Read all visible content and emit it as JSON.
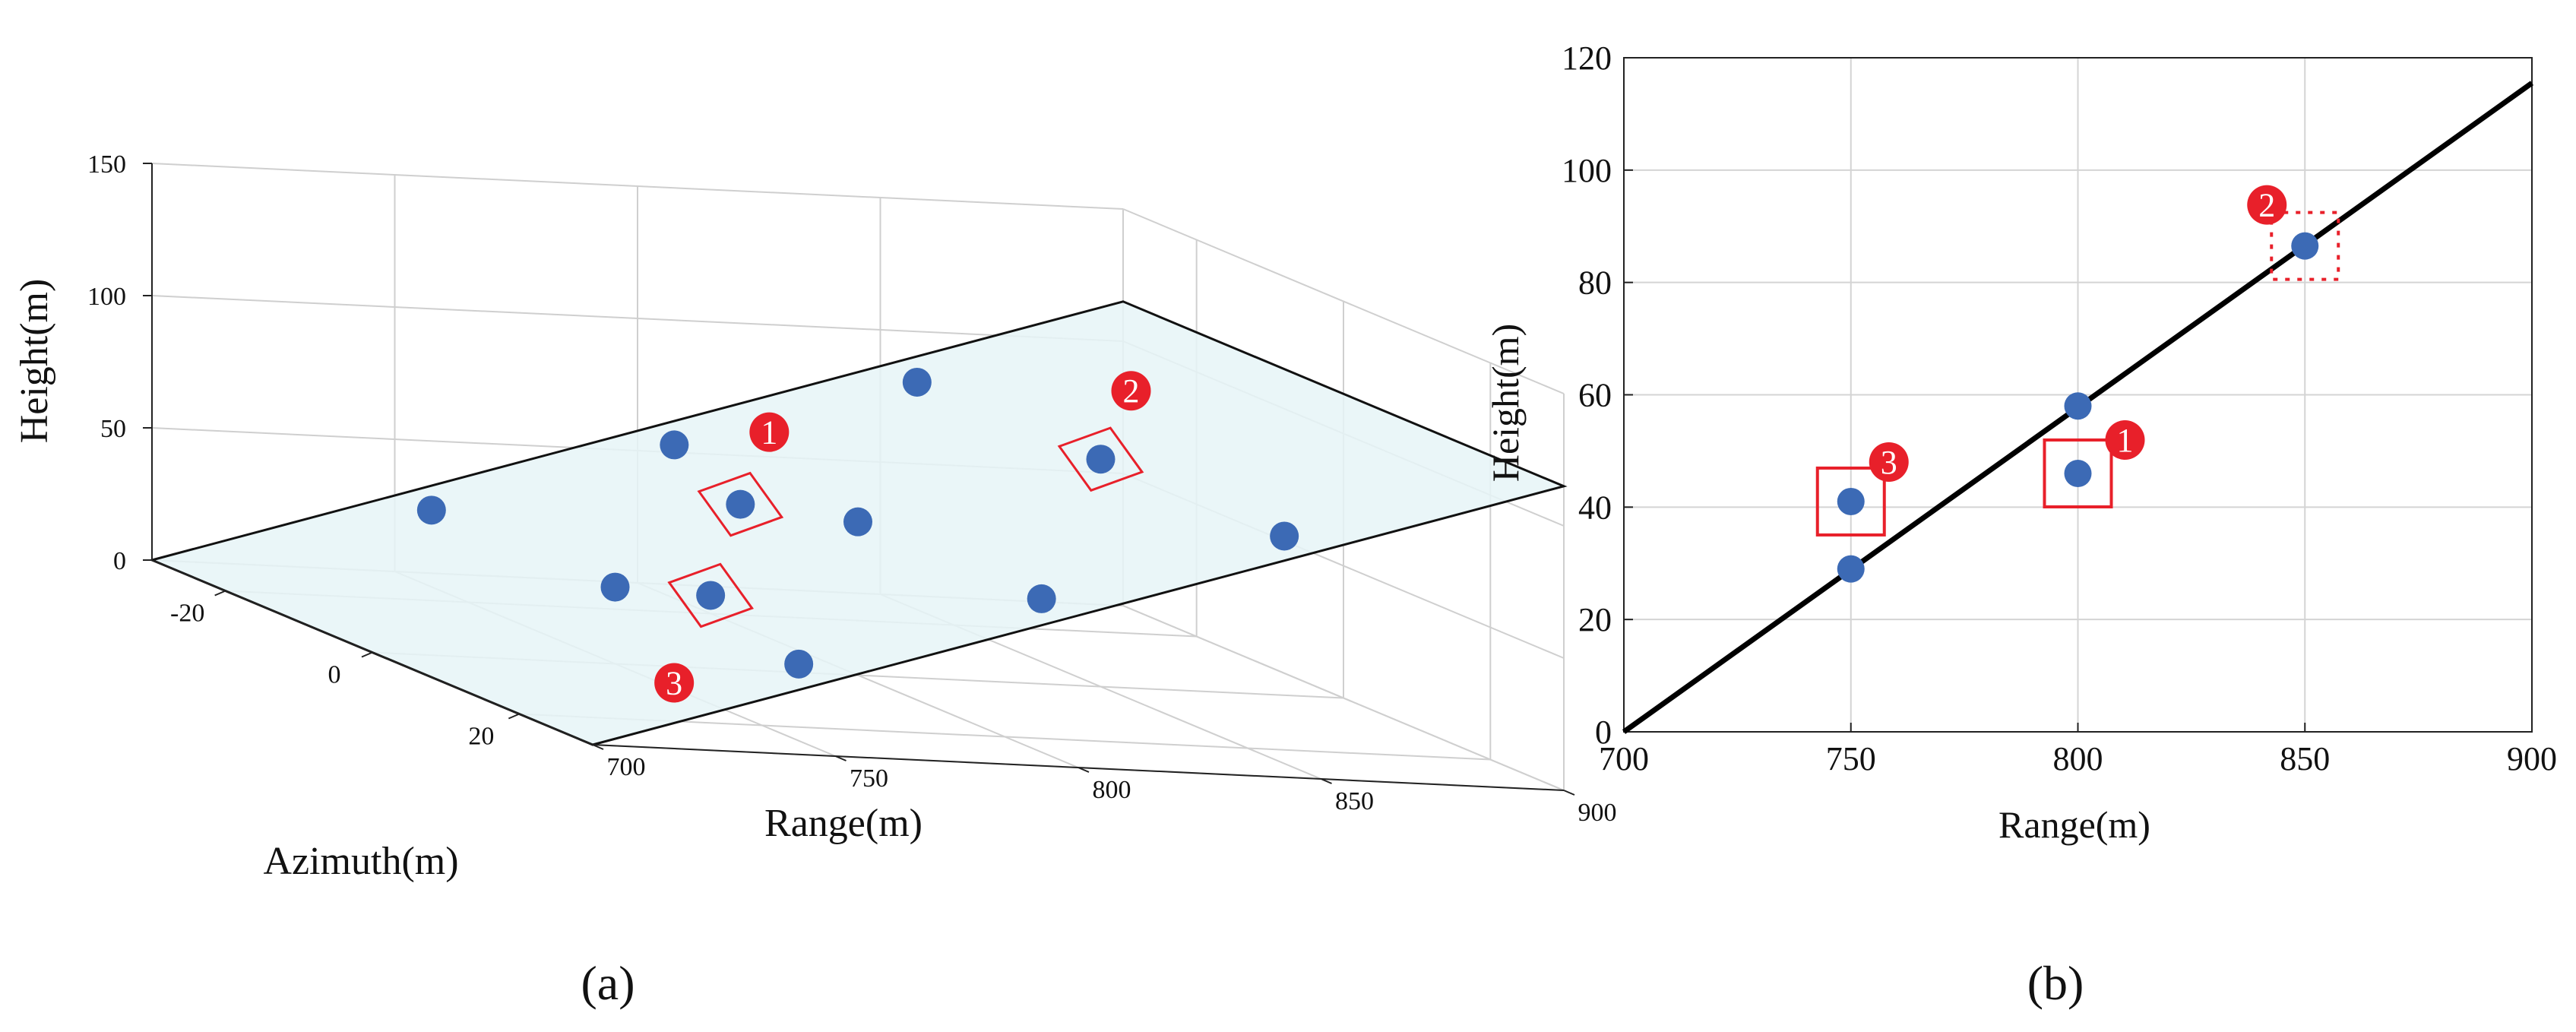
{
  "chart_data": [
    {
      "id": "a",
      "type": "scatter",
      "caption": "(a)",
      "xlabel": "Range(m)",
      "ylabel": "Azimuth(m)",
      "zlabel": "Height(m)",
      "xlim": [
        700,
        900
      ],
      "ylim": [
        -30,
        30
      ],
      "zlim": [
        0,
        150
      ],
      "x_ticks": [
        "700",
        "750",
        "800",
        "850",
        "900"
      ],
      "y_ticks": [
        "-20",
        "0",
        "20"
      ],
      "z_ticks": [
        "0",
        "50",
        "100",
        "150"
      ],
      "grid": true,
      "plane": {
        "z_at_700": 0,
        "z_at_900": 115,
        "color": "#e6f4f7"
      },
      "points": [
        {
          "x": 750,
          "y": 25,
          "z": 29
        },
        {
          "x": 750,
          "y": 0,
          "z": 29
        },
        {
          "x": 750,
          "y": -25,
          "z": 29
        },
        {
          "x": 800,
          "y": 25,
          "z": 58
        },
        {
          "x": 800,
          "y": 0,
          "z": 58
        },
        {
          "x": 800,
          "y": -25,
          "z": 58
        },
        {
          "x": 850,
          "y": 25,
          "z": 86
        },
        {
          "x": 850,
          "y": 0,
          "z": 86
        },
        {
          "x": 850,
          "y": -25,
          "z": 86
        },
        {
          "x": 800,
          "y": -16,
          "z": 46
        },
        {
          "x": 750,
          "y": 13,
          "z": 41
        }
      ],
      "markers": [
        {
          "label": "1",
          "x": 800,
          "y": -16,
          "z": 46,
          "style": "solid"
        },
        {
          "label": "2",
          "x": 850,
          "y": 0,
          "z": 86,
          "style": "solid"
        },
        {
          "label": "3",
          "x": 750,
          "y": 13,
          "z": 41,
          "style": "solid"
        }
      ],
      "point_color": "#3c6ab5",
      "marker_color": "#e8202a"
    },
    {
      "id": "b",
      "type": "scatter",
      "caption": "(b)",
      "xlabel": "Range(m)",
      "ylabel": "Height(m)",
      "xlim": [
        700,
        900
      ],
      "ylim": [
        0,
        120
      ],
      "x_ticks": [
        "700",
        "750",
        "800",
        "850",
        "900"
      ],
      "y_ticks": [
        "0",
        "20",
        "40",
        "60",
        "80",
        "100",
        "120"
      ],
      "grid": true,
      "line": {
        "x": [
          700,
          900
        ],
        "y": [
          0,
          115.5
        ],
        "color": "#000000"
      },
      "points": [
        {
          "x": 750,
          "y": 29
        },
        {
          "x": 750,
          "y": 41
        },
        {
          "x": 800,
          "y": 58
        },
        {
          "x": 800,
          "y": 46
        },
        {
          "x": 850,
          "y": 86.5
        }
      ],
      "markers": [
        {
          "label": "1",
          "x": 800,
          "y": 46,
          "style": "solid"
        },
        {
          "label": "2",
          "x": 850,
          "y": 86.5,
          "style": "dotted"
        },
        {
          "label": "3",
          "x": 750,
          "y": 41,
          "style": "solid"
        }
      ],
      "point_color": "#3c6ab5",
      "marker_color": "#e8202a"
    }
  ]
}
